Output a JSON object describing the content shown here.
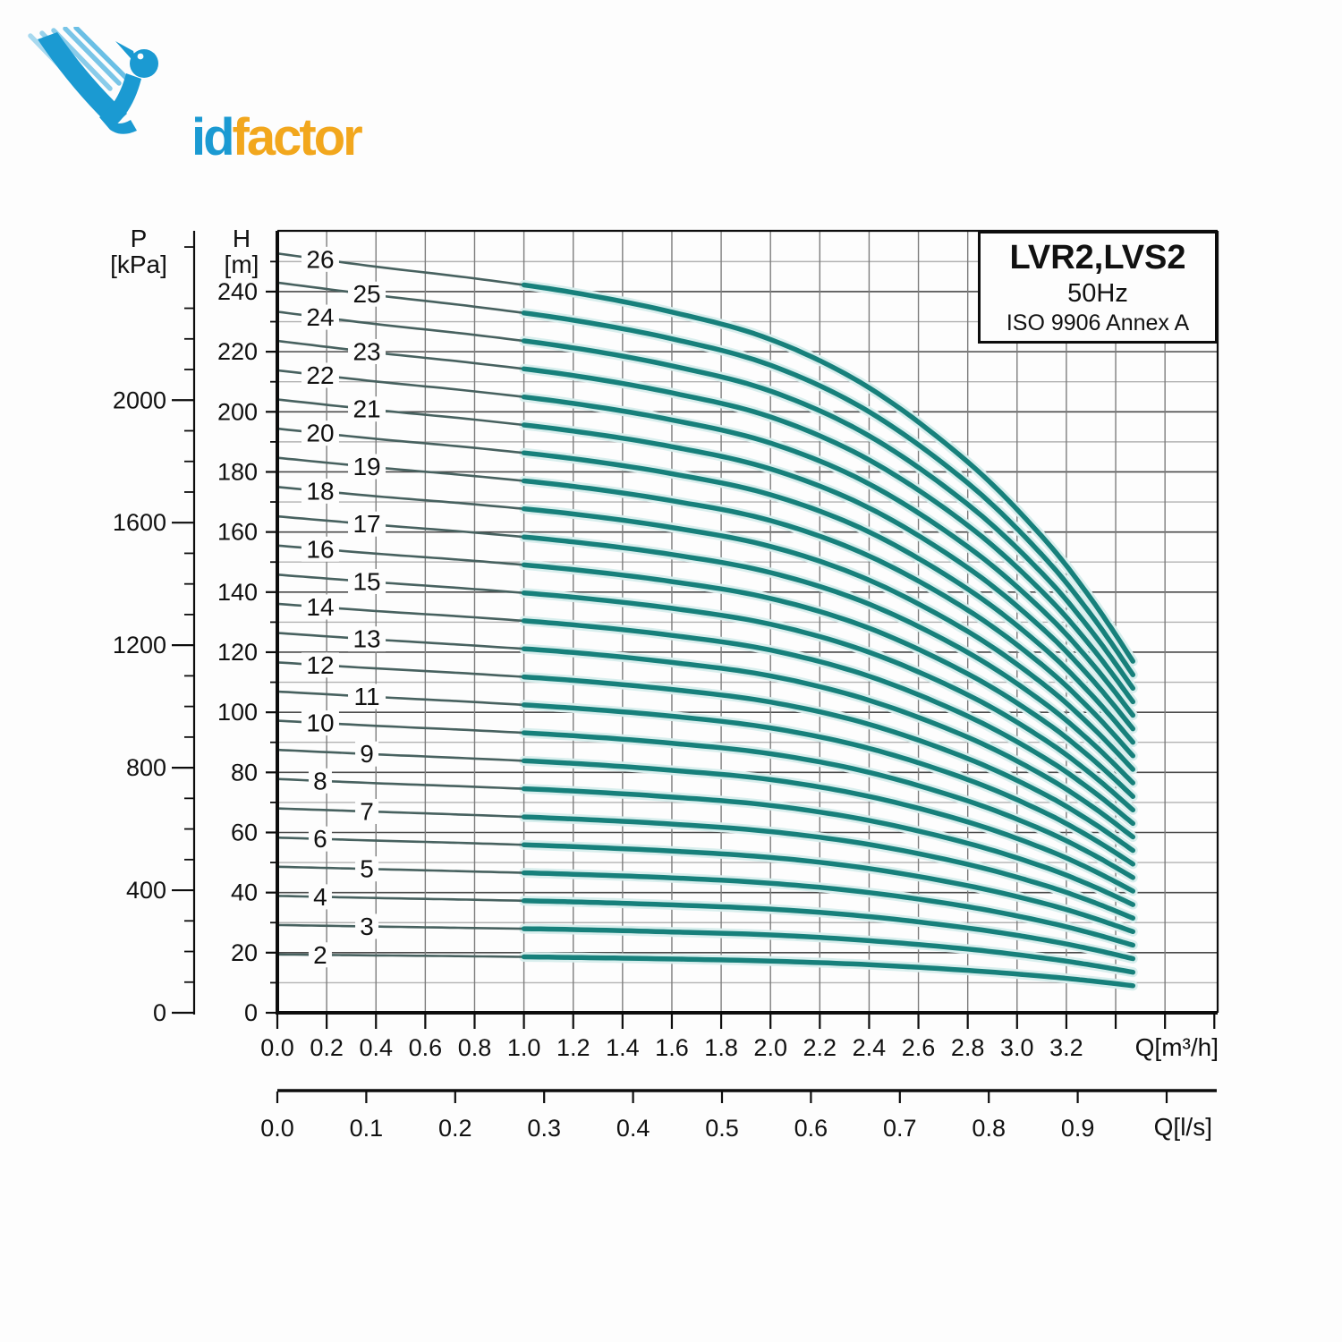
{
  "logo": {
    "name": "VidFactor logo",
    "part1": "id",
    "part2": "factor",
    "blue": "#1b9ad2",
    "light_blue": "#6fc1e6",
    "orange": "#f2a71d"
  },
  "title_box": {
    "line1": "LVR2,LVS2",
    "line2": "50Hz",
    "line3": "ISO 9906 Annex A"
  },
  "axes": {
    "pressure": {
      "header_symbol": "P",
      "header_unit": "[kPa]",
      "labeled_ticks": [
        2000,
        1600,
        1200,
        800,
        400,
        0
      ],
      "minor_step": 100,
      "minor_max": 2500
    },
    "head": {
      "header_symbol": "H",
      "header_unit": "[m]",
      "labeled_ticks": [
        240,
        220,
        200,
        180,
        160,
        140,
        120,
        100,
        80,
        60,
        40,
        20,
        0
      ],
      "minor_ticks": [
        250,
        230,
        210,
        190,
        170,
        150,
        130,
        110,
        90,
        70,
        50,
        30,
        10
      ]
    },
    "flow_m3h": {
      "labels": [
        "0.0",
        "0.2",
        "0.4",
        "0.6",
        "0.8",
        "1.0",
        "1.2",
        "1.4",
        "1.6",
        "1.8",
        "2.0",
        "2.2",
        "2.4",
        "2.6",
        "2.8",
        "3.0",
        "3.2"
      ],
      "label_step": 0.2,
      "tick_max": 3.8,
      "unit": "Q[m³/h]"
    },
    "flow_ls": {
      "labels": [
        "0.0",
        "0.1",
        "0.2",
        "0.3",
        "0.4",
        "0.5",
        "0.6",
        "0.7",
        "0.8",
        "0.9"
      ],
      "label_step": 0.1,
      "tick_max": 1.0,
      "unit": "Q[l/s]"
    }
  },
  "colors": {
    "curve_bold": "#17807b",
    "curve_thin": "#47615f",
    "curve_halo": "#d8eeed",
    "grid_vertical": "#7d7d7d",
    "grid_h_major": "#4a4a4a",
    "grid_h_minor": "#b2b2b2",
    "axis": "#0d0d0d",
    "label_bg": "#fdfdfd"
  },
  "chart_data": {
    "type": "line",
    "title": "LVR2,LVS2 50Hz pump performance curves (ISO 9906 Annex A)",
    "xlabel": "Q[m³/h]",
    "ylabel": "H [m]",
    "y2label": "P [kPa]",
    "xlabel2": "Q[l/s]",
    "xlim": [
      0,
      3.8
    ],
    "ylim": [
      0,
      260
    ],
    "grid": "on",
    "q_m3h": [
      0,
      0.4,
      0.8,
      1.2,
      1.6,
      2.0,
      2.4,
      2.8,
      3.1,
      3.3,
      3.47
    ],
    "per_stage_head_m": [
      9.72,
      9.55,
      9.4,
      9.22,
      8.97,
      8.62,
      8.0,
      7.05,
      6.1,
      5.3,
      4.5
    ],
    "series_rule": "H(stages,Q) = stages × per_stage_head(Q)",
    "bold_from_q": 1.0,
    "q_end": 3.47,
    "curve_labels": {
      "even_q": 0.174,
      "odd_q": 0.363
    },
    "series": [
      {
        "name": "2",
        "stages": 2,
        "values": [
          19.4,
          19.1,
          18.8,
          18.4,
          17.9,
          17.2,
          16.0,
          14.1,
          12.2,
          10.6,
          9.0
        ]
      },
      {
        "name": "3",
        "stages": 3,
        "values": [
          29.2,
          28.7,
          28.2,
          27.7,
          26.9,
          25.9,
          24.0,
          21.2,
          18.3,
          15.9,
          13.5
        ]
      },
      {
        "name": "4",
        "stages": 4,
        "values": [
          38.9,
          38.2,
          37.6,
          36.9,
          35.9,
          34.5,
          32.0,
          28.2,
          24.4,
          21.2,
          18.0
        ]
      },
      {
        "name": "5",
        "stages": 5,
        "values": [
          48.6,
          47.8,
          47.0,
          46.1,
          44.9,
          43.1,
          40.0,
          35.3,
          30.5,
          26.5,
          22.5
        ]
      },
      {
        "name": "6",
        "stages": 6,
        "values": [
          58.3,
          57.3,
          56.4,
          55.3,
          53.8,
          51.7,
          48.0,
          42.3,
          36.6,
          31.8,
          27.0
        ]
      },
      {
        "name": "7",
        "stages": 7,
        "values": [
          68.0,
          66.9,
          65.8,
          64.5,
          62.8,
          60.3,
          56.0,
          49.4,
          42.7,
          37.1,
          31.5
        ]
      },
      {
        "name": "8",
        "stages": 8,
        "values": [
          77.8,
          76.4,
          75.2,
          73.8,
          71.8,
          69.0,
          64.0,
          56.4,
          48.8,
          42.4,
          36.0
        ]
      },
      {
        "name": "9",
        "stages": 9,
        "values": [
          87.5,
          86.0,
          84.6,
          83.0,
          80.7,
          77.6,
          72.0,
          63.5,
          54.9,
          47.7,
          40.5
        ]
      },
      {
        "name": "10",
        "stages": 10,
        "values": [
          97.2,
          95.5,
          94.0,
          92.2,
          89.7,
          86.2,
          80.0,
          70.5,
          61.0,
          53.0,
          45.0
        ]
      },
      {
        "name": "11",
        "stages": 11,
        "values": [
          106.9,
          105.1,
          103.4,
          101.4,
          98.7,
          94.8,
          88.0,
          77.6,
          67.1,
          58.3,
          49.5
        ]
      },
      {
        "name": "12",
        "stages": 12,
        "values": [
          116.6,
          114.6,
          112.8,
          110.6,
          107.6,
          103.4,
          96.0,
          84.6,
          73.2,
          63.6,
          54.0
        ]
      },
      {
        "name": "13",
        "stages": 13,
        "values": [
          126.4,
          124.2,
          122.2,
          119.9,
          116.6,
          112.1,
          104.0,
          91.7,
          79.3,
          68.9,
          58.5
        ]
      },
      {
        "name": "14",
        "stages": 14,
        "values": [
          136.1,
          133.7,
          131.6,
          129.1,
          125.6,
          120.7,
          112.0,
          98.7,
          85.4,
          74.2,
          63.0
        ]
      },
      {
        "name": "15",
        "stages": 15,
        "values": [
          145.8,
          143.3,
          141.0,
          138.3,
          134.6,
          129.3,
          120.0,
          105.8,
          91.5,
          79.5,
          67.5
        ]
      },
      {
        "name": "16",
        "stages": 16,
        "values": [
          155.5,
          152.8,
          150.4,
          147.5,
          143.5,
          137.9,
          128.0,
          112.8,
          97.6,
          84.8,
          72.0
        ]
      },
      {
        "name": "17",
        "stages": 17,
        "values": [
          165.2,
          162.4,
          159.8,
          156.7,
          152.5,
          146.5,
          136.0,
          119.9,
          103.7,
          90.1,
          76.5
        ]
      },
      {
        "name": "18",
        "stages": 18,
        "values": [
          175.0,
          171.9,
          169.2,
          166.0,
          161.5,
          155.2,
          144.0,
          126.9,
          109.8,
          95.4,
          81.0
        ]
      },
      {
        "name": "19",
        "stages": 19,
        "values": [
          184.7,
          181.5,
          178.6,
          175.2,
          170.4,
          163.8,
          152.0,
          134.0,
          115.9,
          100.7,
          85.5
        ]
      },
      {
        "name": "20",
        "stages": 20,
        "values": [
          194.4,
          191.0,
          188.0,
          184.4,
          179.4,
          172.4,
          160.0,
          141.0,
          122.0,
          106.0,
          90.0
        ]
      },
      {
        "name": "21",
        "stages": 21,
        "values": [
          204.1,
          200.6,
          197.4,
          193.6,
          188.4,
          181.0,
          168.0,
          148.1,
          128.1,
          111.3,
          94.5
        ]
      },
      {
        "name": "22",
        "stages": 22,
        "values": [
          213.8,
          210.1,
          206.8,
          202.8,
          197.3,
          189.6,
          176.0,
          155.1,
          134.2,
          116.6,
          99.0
        ]
      },
      {
        "name": "23",
        "stages": 23,
        "values": [
          223.6,
          219.7,
          216.2,
          212.1,
          206.3,
          198.3,
          184.0,
          162.2,
          140.3,
          121.9,
          103.5
        ]
      },
      {
        "name": "24",
        "stages": 24,
        "values": [
          233.3,
          229.2,
          225.6,
          221.3,
          215.3,
          206.9,
          192.0,
          169.2,
          146.4,
          127.2,
          108.0
        ]
      },
      {
        "name": "25",
        "stages": 25,
        "values": [
          243.0,
          238.8,
          235.0,
          230.5,
          224.3,
          215.5,
          200.0,
          176.3,
          152.5,
          132.5,
          112.5
        ]
      },
      {
        "name": "26",
        "stages": 26,
        "values": [
          252.7,
          248.3,
          244.4,
          239.7,
          233.2,
          224.1,
          208.0,
          183.3,
          158.6,
          137.8,
          117.0
        ]
      }
    ]
  }
}
